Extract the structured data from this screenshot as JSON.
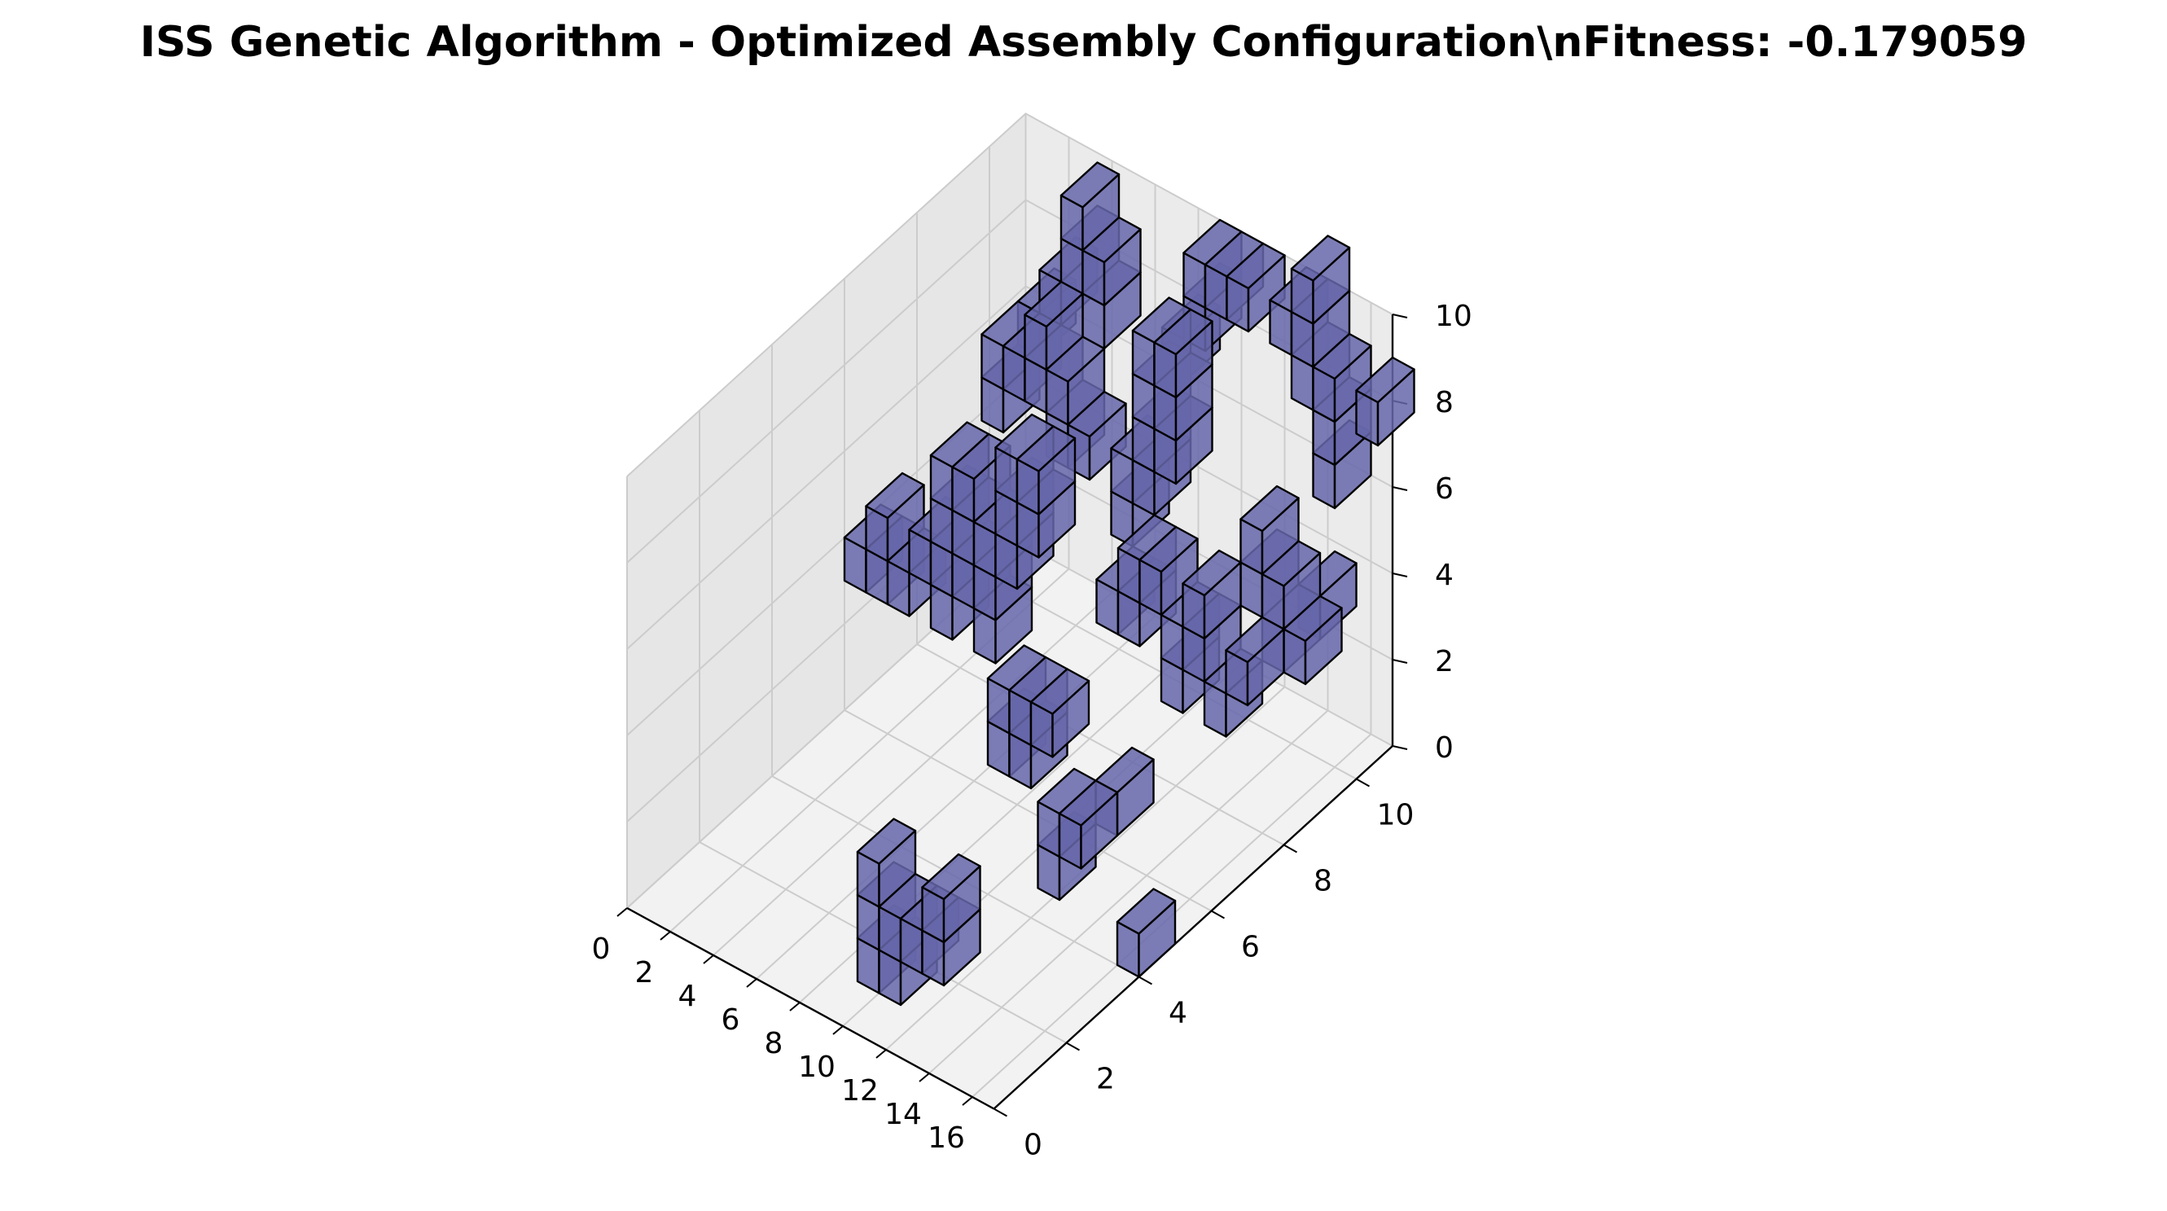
{
  "chart_data": {
    "type": "voxel",
    "title": "ISS Genetic Algorithm - Optimized Assembly Configuration\\nFitness: -0.179059",
    "xlabel": "",
    "ylabel": "",
    "zlabel": "",
    "x_ticks": [
      "0",
      "2",
      "4",
      "6",
      "8",
      "10",
      "12",
      "14",
      "16"
    ],
    "y_ticks": [
      "0",
      "2",
      "4",
      "6",
      "8",
      "10"
    ],
    "z_ticks": [
      "0",
      "2",
      "4",
      "6",
      "8",
      "10"
    ],
    "xlim": [
      0,
      17
    ],
    "ylim": [
      0,
      11
    ],
    "zlim": [
      0,
      10
    ],
    "grid": true,
    "colors": {
      "face": "#6666aa",
      "edge": "#000000",
      "pane": "#f2f2f2",
      "grid": "#cccccc"
    },
    "voxels": [
      [
        9,
        1,
        0
      ],
      [
        9,
        1,
        1
      ],
      [
        9,
        1,
        2
      ],
      [
        10,
        1,
        0
      ],
      [
        10,
        1,
        1
      ],
      [
        11,
        1,
        1
      ],
      [
        12,
        1,
        1
      ],
      [
        12,
        1,
        2
      ],
      [
        10,
        4,
        3
      ],
      [
        10,
        4,
        4
      ],
      [
        11,
        4,
        3
      ],
      [
        11,
        4,
        4
      ],
      [
        12,
        4,
        4
      ],
      [
        14,
        3,
        2
      ],
      [
        14,
        3,
        3
      ],
      [
        15,
        4,
        3
      ],
      [
        15,
        3,
        3
      ],
      [
        16,
        4,
        0
      ],
      [
        0,
        6,
        3
      ],
      [
        1,
        6,
        3
      ],
      [
        1,
        6,
        4
      ],
      [
        2,
        6,
        3
      ],
      [
        3,
        6,
        4
      ],
      [
        4,
        6,
        3
      ],
      [
        4,
        6,
        4
      ],
      [
        4,
        6,
        5
      ],
      [
        4,
        6,
        6
      ],
      [
        5,
        6,
        5
      ],
      [
        5,
        6,
        6
      ],
      [
        5,
        6,
        4
      ],
      [
        6,
        6,
        3
      ],
      [
        6,
        6,
        4
      ],
      [
        6,
        6,
        5
      ],
      [
        7,
        6,
        5
      ],
      [
        7,
        6,
        6
      ],
      [
        7,
        6,
        7
      ],
      [
        8,
        6,
        6
      ],
      [
        8,
        6,
        7
      ],
      [
        10,
        7,
        4
      ],
      [
        11,
        7,
        4
      ],
      [
        11,
        7,
        5
      ],
      [
        12,
        7,
        5
      ],
      [
        13,
        7,
        4
      ],
      [
        13,
        7,
        3
      ],
      [
        14,
        7,
        4
      ],
      [
        14,
        7,
        5
      ],
      [
        15,
        8,
        5
      ],
      [
        15,
        8,
        6
      ],
      [
        16,
        8,
        5
      ],
      [
        16,
        8,
        4
      ],
      [
        17,
        8,
        4
      ],
      [
        16,
        7,
        4
      ],
      [
        15,
        7,
        3
      ],
      [
        16,
        9,
        4
      ],
      [
        3,
        8,
        6
      ],
      [
        3,
        8,
        7
      ],
      [
        4,
        8,
        7
      ],
      [
        5,
        8,
        7
      ],
      [
        5,
        8,
        8
      ],
      [
        6,
        8,
        7
      ],
      [
        7,
        8,
        6
      ],
      [
        6,
        8,
        6
      ],
      [
        3,
        9,
        7
      ],
      [
        4,
        9,
        8
      ],
      [
        5,
        9,
        9
      ],
      [
        5,
        9,
        10
      ],
      [
        6,
        9,
        8
      ],
      [
        6,
        9,
        9
      ],
      [
        9,
        8,
        6
      ],
      [
        9,
        8,
        5
      ],
      [
        10,
        8,
        7
      ],
      [
        10,
        8,
        6
      ],
      [
        11,
        8,
        7
      ],
      [
        10,
        8,
        8
      ],
      [
        11,
        8,
        8
      ],
      [
        10,
        8,
        9
      ],
      [
        11,
        8,
        9
      ],
      [
        8,
        10,
        7
      ],
      [
        9,
        10,
        8
      ],
      [
        9,
        10,
        9
      ],
      [
        10,
        10,
        9
      ],
      [
        11,
        10,
        9
      ],
      [
        13,
        10,
        9
      ],
      [
        14,
        10,
        8
      ],
      [
        14,
        10,
        9
      ],
      [
        14,
        10,
        10
      ],
      [
        15,
        10,
        7
      ],
      [
        15,
        10,
        8
      ],
      [
        15,
        10,
        6
      ],
      [
        17,
        10,
        8
      ]
    ]
  }
}
